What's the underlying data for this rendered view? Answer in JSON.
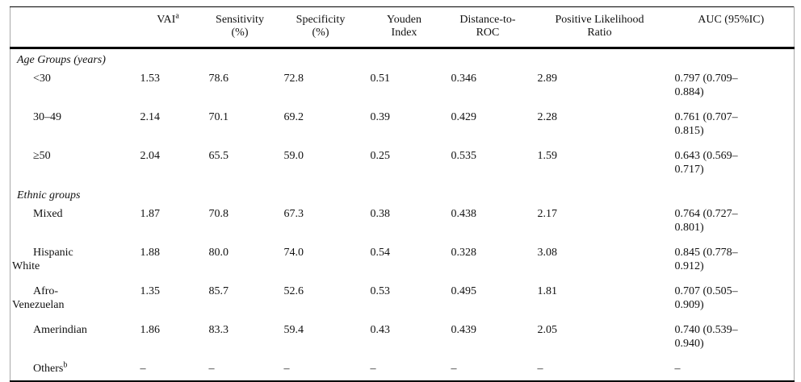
{
  "table": {
    "columns": [
      {
        "id": "label",
        "line1": "",
        "line2": ""
      },
      {
        "id": "vai",
        "line1": "VAI",
        "sup": "a",
        "line2": ""
      },
      {
        "id": "sensitivity",
        "line1": "Sensitivity",
        "line2": "(%)"
      },
      {
        "id": "specificity",
        "line1": "Specificity",
        "line2": "(%)"
      },
      {
        "id": "youden",
        "line1": "Youden",
        "line2": "Index"
      },
      {
        "id": "distance",
        "line1": "Distance-to-",
        "line2": "ROC"
      },
      {
        "id": "plr",
        "line1": "Positive Likelihood",
        "line2": "Ratio"
      },
      {
        "id": "auc",
        "line1": "AUC (95%IC)",
        "line2": ""
      }
    ],
    "rows": [
      {
        "type": "section",
        "label": "Age Groups (years)"
      },
      {
        "type": "item",
        "label": "<30",
        "vai": "1.53",
        "sensitivity": "78.6",
        "specificity": "72.8",
        "youden": "0.51",
        "distance": "0.346",
        "plr": "2.89",
        "auc1": "0.797 (0.709–",
        "auc2": "0.884)"
      },
      {
        "type": "item",
        "label": "30–49",
        "vai": "2.14",
        "sensitivity": "70.1",
        "specificity": "69.2",
        "youden": "0.39",
        "distance": "0.429",
        "plr": "2.28",
        "auc1": "0.761 (0.707–",
        "auc2": "0.815)"
      },
      {
        "type": "item",
        "label": "≥50",
        "vai": "2.04",
        "sensitivity": "65.5",
        "specificity": "59.0",
        "youden": "0.25",
        "distance": "0.535",
        "plr": "1.59",
        "auc1": "0.643 (0.569–",
        "auc2": "0.717)"
      },
      {
        "type": "section",
        "label": "Ethnic groups"
      },
      {
        "type": "item",
        "label": "Mixed",
        "vai": "1.87",
        "sensitivity": "70.8",
        "specificity": "67.3",
        "youden": "0.38",
        "distance": "0.438",
        "plr": "2.17",
        "auc1": "0.764 (0.727–",
        "auc2": "0.801)"
      },
      {
        "type": "item",
        "label": "Hispanic",
        "label2": "White",
        "vai": "1.88",
        "sensitivity": "80.0",
        "specificity": "74.0",
        "youden": "0.54",
        "distance": "0.328",
        "plr": "3.08",
        "auc1": "0.845 (0.778–",
        "auc2": "0.912)"
      },
      {
        "type": "item",
        "label": "Afro-",
        "label2": "Venezuelan",
        "vai": "1.35",
        "sensitivity": "85.7",
        "specificity": "52.6",
        "youden": "0.53",
        "distance": "0.495",
        "plr": "1.81",
        "auc1": "0.707 (0.505–",
        "auc2": "0.909)"
      },
      {
        "type": "item",
        "label": "Amerindian",
        "vai": "1.86",
        "sensitivity": "83.3",
        "specificity": "59.4",
        "youden": "0.43",
        "distance": "0.439",
        "plr": "2.05",
        "auc1": "0.740 (0.539–",
        "auc2": "0.940)"
      },
      {
        "type": "item",
        "single": true,
        "label": "Others",
        "label_sup": "b",
        "vai": "–",
        "sensitivity": "–",
        "specificity": "–",
        "youden": "–",
        "distance": "–",
        "plr": "–",
        "auc1": "–",
        "auc2": ""
      }
    ]
  }
}
